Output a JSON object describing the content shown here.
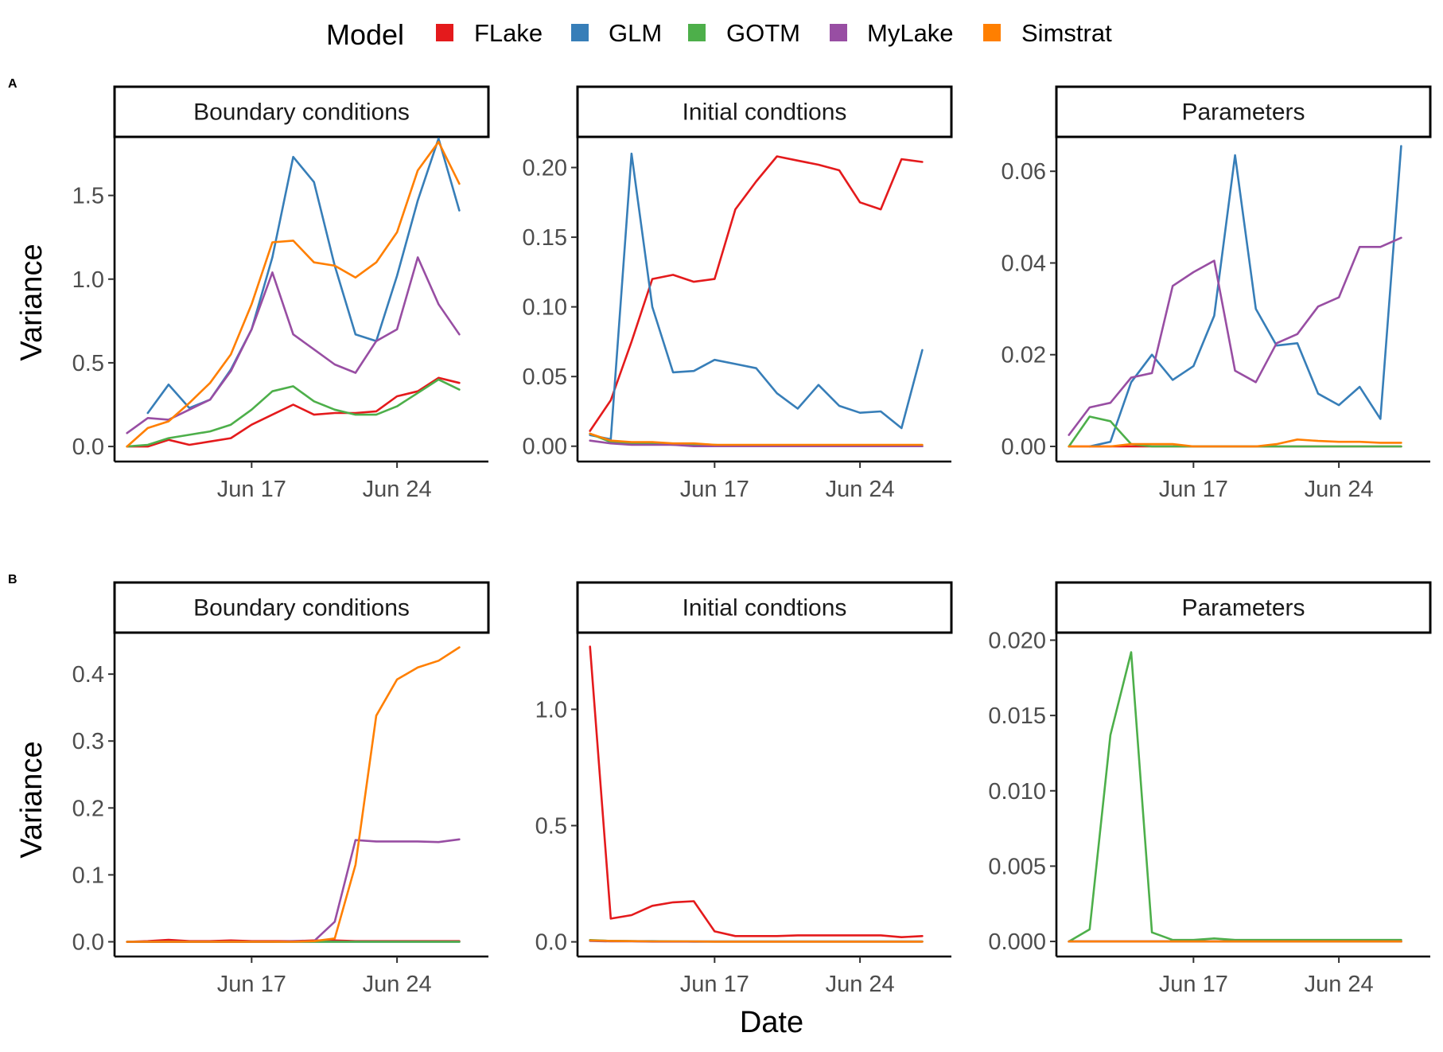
{
  "legend": {
    "title": "Model",
    "entries": [
      {
        "name": "FLake",
        "color": "#E41A1C"
      },
      {
        "name": "GLM",
        "color": "#377EB8"
      },
      {
        "name": "GOTM",
        "color": "#4DAF4A"
      },
      {
        "name": "MyLake",
        "color": "#984EA3"
      },
      {
        "name": "Simstrat",
        "color": "#FF7F00"
      }
    ]
  },
  "x_title": "Date",
  "y_title": "Variance",
  "row_tags": [
    "A",
    "B"
  ],
  "chart_data": [
    {
      "type": "line",
      "row": "A",
      "facet": "Boundary conditions",
      "xlabel": "",
      "ylabel": "Variance",
      "x": [
        11,
        12,
        13,
        14,
        15,
        16,
        17,
        18,
        19,
        20,
        21,
        22,
        23,
        24,
        25,
        26,
        27,
        28
      ],
      "xlim": [
        10.4,
        28.4
      ],
      "ylim": [
        -0.09,
        1.85
      ],
      "x_ticks": [
        {
          "value": 17,
          "label": "Jun 17"
        },
        {
          "value": 24,
          "label": "Jun 24"
        }
      ],
      "y_ticks": [
        {
          "value": 0,
          "label": "0.0"
        },
        {
          "value": 0.5,
          "label": "0.5"
        },
        {
          "value": 1.0,
          "label": "1.0"
        },
        {
          "value": 1.5,
          "label": "1.5"
        }
      ],
      "series": [
        {
          "name": "FLake",
          "values": [
            0.0,
            0.0,
            0.04,
            0.01,
            0.03,
            0.05,
            0.13,
            0.19,
            0.25,
            0.19,
            0.2,
            0.2,
            0.21,
            0.3,
            0.33,
            0.41,
            0.38,
            null
          ]
        },
        {
          "name": "GLM",
          "values": [
            null,
            0.2,
            0.37,
            0.23,
            0.28,
            0.46,
            0.7,
            1.13,
            1.73,
            1.58,
            1.08,
            0.67,
            0.63,
            1.02,
            1.47,
            1.84,
            1.41,
            null
          ]
        },
        {
          "name": "GOTM",
          "values": [
            0.0,
            0.01,
            0.05,
            0.07,
            0.09,
            0.13,
            0.22,
            0.33,
            0.36,
            0.27,
            0.22,
            0.19,
            0.19,
            0.24,
            0.32,
            0.4,
            0.34,
            null
          ]
        },
        {
          "name": "MyLake",
          "values": [
            0.08,
            0.17,
            0.16,
            0.22,
            0.28,
            0.45,
            0.7,
            1.04,
            0.67,
            0.58,
            0.49,
            0.44,
            0.63,
            0.7,
            1.13,
            0.85,
            0.67,
            null
          ]
        },
        {
          "name": "Simstrat",
          "values": [
            0.0,
            0.11,
            0.15,
            0.26,
            0.38,
            0.55,
            0.85,
            1.22,
            1.23,
            1.1,
            1.08,
            1.01,
            1.1,
            1.28,
            1.65,
            1.82,
            1.57,
            null
          ]
        }
      ]
    },
    {
      "type": "line",
      "row": "A",
      "facet": "Initial condtions",
      "xlabel": "",
      "ylabel": "",
      "x": [
        11,
        12,
        13,
        14,
        15,
        16,
        17,
        18,
        19,
        20,
        21,
        22,
        23,
        24,
        25,
        26,
        27,
        28
      ],
      "xlim": [
        10.4,
        28.4
      ],
      "ylim": [
        -0.011,
        0.222
      ],
      "x_ticks": [
        {
          "value": 17,
          "label": "Jun 17"
        },
        {
          "value": 24,
          "label": "Jun 24"
        }
      ],
      "y_ticks": [
        {
          "value": 0,
          "label": "0.00"
        },
        {
          "value": 0.05,
          "label": "0.05"
        },
        {
          "value": 0.1,
          "label": "0.10"
        },
        {
          "value": 0.15,
          "label": "0.15"
        },
        {
          "value": 0.2,
          "label": "0.20"
        }
      ],
      "series": [
        {
          "name": "FLake",
          "values": [
            0.011,
            0.033,
            0.075,
            0.12,
            0.123,
            0.118,
            0.12,
            0.17,
            0.19,
            0.208,
            0.205,
            0.202,
            0.198,
            0.175,
            0.17,
            0.206,
            0.204,
            null
          ]
        },
        {
          "name": "GLM",
          "values": [
            0.008,
            0.005,
            0.21,
            0.1,
            0.053,
            0.054,
            0.062,
            0.059,
            0.056,
            0.038,
            0.027,
            0.044,
            0.029,
            0.024,
            0.025,
            0.013,
            0.069,
            null
          ]
        },
        {
          "name": "GOTM",
          "values": [
            0.009,
            0.003,
            0.002,
            0.002,
            0.001,
            0.001,
            0.001,
            0.0,
            0.0,
            0.0,
            0.0,
            0.0,
            0.0,
            0.0,
            0.0,
            0.0,
            0.0,
            null
          ]
        },
        {
          "name": "MyLake",
          "values": [
            0.004,
            0.002,
            0.001,
            0.001,
            0.001,
            0.0,
            0.0,
            0.0,
            0.0,
            0.0,
            0.0,
            0.0,
            0.0,
            0.0,
            0.0,
            0.0,
            0.0,
            null
          ]
        },
        {
          "name": "Simstrat",
          "values": [
            0.009,
            0.004,
            0.003,
            0.003,
            0.002,
            0.002,
            0.001,
            0.001,
            0.001,
            0.001,
            0.001,
            0.001,
            0.001,
            0.001,
            0.001,
            0.001,
            0.001,
            null
          ]
        }
      ]
    },
    {
      "type": "line",
      "row": "A",
      "facet": "Parameters",
      "xlabel": "",
      "ylabel": "",
      "x": [
        11,
        12,
        13,
        14,
        15,
        16,
        17,
        18,
        19,
        20,
        21,
        22,
        23,
        24,
        25,
        26,
        27,
        28
      ],
      "xlim": [
        10.4,
        28.4
      ],
      "ylim": [
        -0.0033,
        0.0675
      ],
      "x_ticks": [
        {
          "value": 17,
          "label": "Jun 17"
        },
        {
          "value": 24,
          "label": "Jun 24"
        }
      ],
      "y_ticks": [
        {
          "value": 0,
          "label": "0.00"
        },
        {
          "value": 0.02,
          "label": "0.02"
        },
        {
          "value": 0.04,
          "label": "0.04"
        },
        {
          "value": 0.06,
          "label": "0.06"
        }
      ],
      "series": [
        {
          "name": "FLake",
          "values": [
            0.0,
            0.0,
            0.0,
            0.0,
            0.0,
            0.0,
            0.0,
            0.0,
            0.0,
            0.0,
            0.0,
            0.0,
            0.0,
            0.0,
            0.0,
            0.0,
            0.0,
            null
          ]
        },
        {
          "name": "GLM",
          "values": [
            null,
            0.0,
            0.001,
            0.014,
            0.02,
            0.0145,
            0.0175,
            0.0285,
            0.0635,
            0.03,
            0.022,
            0.0225,
            0.0115,
            0.009,
            0.013,
            0.006,
            0.0655,
            null
          ]
        },
        {
          "name": "GOTM",
          "values": [
            0.0,
            0.0065,
            0.0055,
            0.0005,
            0.0,
            0.0,
            0.0,
            0.0,
            0.0,
            0.0,
            0.0,
            0.0,
            0.0,
            0.0,
            0.0,
            0.0,
            0.0,
            null
          ]
        },
        {
          "name": "MyLake",
          "values": [
            0.0025,
            0.0085,
            0.0095,
            0.015,
            0.016,
            0.035,
            0.038,
            0.0405,
            0.0165,
            0.014,
            0.0225,
            0.0245,
            0.0305,
            0.0325,
            0.0435,
            0.0435,
            0.0455,
            null
          ]
        },
        {
          "name": "Simstrat",
          "values": [
            0.0,
            0.0,
            0.0,
            0.0005,
            0.0005,
            0.0005,
            0.0,
            0.0,
            0.0,
            0.0,
            0.0005,
            0.0015,
            0.0012,
            0.001,
            0.001,
            0.0008,
            0.0008,
            null
          ]
        }
      ]
    },
    {
      "type": "line",
      "row": "B",
      "facet": "Boundary conditions",
      "xlabel": "",
      "ylabel": "Variance",
      "x": [
        11,
        12,
        13,
        14,
        15,
        16,
        17,
        18,
        19,
        20,
        21,
        22,
        23,
        24,
        25,
        26,
        27,
        28
      ],
      "xlim": [
        10.4,
        28.4
      ],
      "ylim": [
        -0.022,
        0.462
      ],
      "x_ticks": [
        {
          "value": 17,
          "label": "Jun 17"
        },
        {
          "value": 24,
          "label": "Jun 24"
        }
      ],
      "y_ticks": [
        {
          "value": 0,
          "label": "0.0"
        },
        {
          "value": 0.1,
          "label": "0.1"
        },
        {
          "value": 0.2,
          "label": "0.2"
        },
        {
          "value": 0.3,
          "label": "0.3"
        },
        {
          "value": 0.4,
          "label": "0.4"
        }
      ],
      "series": [
        {
          "name": "FLake",
          "values": [
            0.0,
            0.001,
            0.003,
            0.001,
            0.001,
            0.002,
            0.001,
            0.001,
            0.001,
            0.002,
            0.002,
            0.001,
            0.001,
            0.001,
            0.001,
            0.001,
            0.001,
            null
          ]
        },
        {
          "name": "GLM",
          "values": [
            0.0,
            0.0,
            0.0,
            0.0,
            0.0,
            0.0,
            0.0,
            0.0,
            0.0,
            0.0,
            0.0,
            0.0,
            0.0,
            0.0,
            0.0,
            0.0,
            0.0,
            null
          ]
        },
        {
          "name": "GOTM",
          "values": [
            0.0,
            0.0,
            0.0,
            0.0,
            0.0,
            0.0,
            0.0,
            0.0,
            0.0,
            0.0,
            0.0,
            0.0,
            0.0,
            0.0,
            0.0,
            0.0,
            0.0,
            null
          ]
        },
        {
          "name": "MyLake",
          "values": [
            0.0,
            0.0,
            0.0,
            0.0,
            0.0,
            0.0,
            0.0,
            0.0,
            0.001,
            0.001,
            0.03,
            0.152,
            0.15,
            0.15,
            0.15,
            0.149,
            0.153,
            null
          ]
        },
        {
          "name": "Simstrat",
          "values": [
            0.0,
            0.0,
            0.0,
            0.0,
            0.0,
            0.0,
            0.0,
            0.0,
            0.0,
            0.001,
            0.005,
            0.115,
            0.338,
            0.392,
            0.41,
            0.42,
            0.44,
            null
          ]
        }
      ]
    },
    {
      "type": "line",
      "row": "B",
      "facet": "Initial condtions",
      "xlabel": "",
      "ylabel": "",
      "x": [
        11,
        12,
        13,
        14,
        15,
        16,
        17,
        18,
        19,
        20,
        21,
        22,
        23,
        24,
        25,
        26,
        27,
        28
      ],
      "xlim": [
        10.4,
        28.4
      ],
      "ylim": [
        -0.063,
        1.33
      ],
      "x_ticks": [
        {
          "value": 17,
          "label": "Jun 17"
        },
        {
          "value": 24,
          "label": "Jun 24"
        }
      ],
      "y_ticks": [
        {
          "value": 0,
          "label": "0.0"
        },
        {
          "value": 0.5,
          "label": "0.5"
        },
        {
          "value": 1.0,
          "label": "1.0"
        }
      ],
      "series": [
        {
          "name": "FLake",
          "values": [
            1.27,
            0.1,
            0.115,
            0.155,
            0.17,
            0.175,
            0.045,
            0.025,
            0.025,
            0.025,
            0.028,
            0.028,
            0.028,
            0.028,
            0.028,
            0.02,
            0.025,
            null
          ]
        },
        {
          "name": "GLM",
          "values": [
            0.005,
            0.004,
            0.003,
            0.003,
            0.002,
            0.002,
            0.002,
            0.002,
            0.002,
            0.002,
            0.002,
            0.002,
            0.002,
            0.002,
            0.002,
            0.002,
            0.002,
            null
          ]
        },
        {
          "name": "GOTM",
          "values": [
            0.008,
            0.004,
            0.003,
            0.002,
            0.002,
            0.001,
            0.001,
            0.001,
            0.001,
            0.001,
            0.001,
            0.001,
            0.001,
            0.001,
            0.001,
            0.001,
            0.001,
            null
          ]
        },
        {
          "name": "MyLake",
          "values": [
            0.004,
            0.002,
            0.002,
            0.001,
            0.001,
            0.001,
            0.001,
            0.001,
            0.001,
            0.001,
            0.001,
            0.001,
            0.001,
            0.001,
            0.001,
            0.001,
            0.001,
            null
          ]
        },
        {
          "name": "Simstrat",
          "values": [
            0.006,
            0.004,
            0.003,
            0.002,
            0.002,
            0.002,
            0.001,
            0.001,
            0.001,
            0.001,
            0.001,
            0.001,
            0.001,
            0.001,
            0.001,
            0.001,
            0.001,
            null
          ]
        }
      ]
    },
    {
      "type": "line",
      "row": "B",
      "facet": "Parameters",
      "xlabel": "",
      "ylabel": "",
      "x": [
        11,
        12,
        13,
        14,
        15,
        16,
        17,
        18,
        19,
        20,
        21,
        22,
        23,
        24,
        25,
        26,
        27,
        28
      ],
      "xlim": [
        10.4,
        28.4
      ],
      "ylim": [
        -0.001,
        0.0205
      ],
      "x_ticks": [
        {
          "value": 17,
          "label": "Jun 17"
        },
        {
          "value": 24,
          "label": "Jun 24"
        }
      ],
      "y_ticks": [
        {
          "value": 0,
          "label": "0.000"
        },
        {
          "value": 0.005,
          "label": "0.005"
        },
        {
          "value": 0.01,
          "label": "0.010"
        },
        {
          "value": 0.015,
          "label": "0.015"
        },
        {
          "value": 0.02,
          "label": "0.020"
        }
      ],
      "series": [
        {
          "name": "FLake",
          "values": [
            0.0,
            0.0,
            0.0,
            0.0,
            0.0,
            0.0,
            0.0,
            0.0,
            0.0,
            0.0,
            0.0,
            0.0,
            0.0,
            0.0,
            0.0,
            0.0,
            0.0,
            null
          ]
        },
        {
          "name": "GLM",
          "values": [
            0.0,
            0.0,
            0.0,
            0.0,
            0.0,
            0.0,
            0.0,
            0.0,
            0.0,
            0.0,
            0.0,
            0.0,
            0.0,
            0.0,
            0.0,
            0.0,
            0.0,
            null
          ]
        },
        {
          "name": "GOTM",
          "values": [
            0.0,
            0.0008,
            0.0137,
            0.0192,
            0.0006,
            0.0001,
            0.0001,
            0.0002,
            0.0001,
            0.0001,
            0.0001,
            0.0001,
            0.0001,
            0.0001,
            0.0001,
            0.0001,
            0.0001,
            null
          ]
        },
        {
          "name": "MyLake",
          "values": [
            0.0,
            0.0,
            0.0,
            0.0,
            0.0,
            0.0,
            0.0,
            0.0,
            0.0,
            0.0,
            0.0,
            0.0,
            0.0,
            0.0,
            0.0,
            0.0,
            0.0,
            null
          ]
        },
        {
          "name": "Simstrat",
          "values": [
            0.0,
            0.0,
            0.0,
            0.0,
            0.0,
            0.0,
            0.0,
            0.0,
            0.0,
            0.0,
            0.0,
            0.0,
            0.0,
            0.0,
            0.0,
            0.0,
            0.0,
            null
          ]
        }
      ]
    }
  ]
}
